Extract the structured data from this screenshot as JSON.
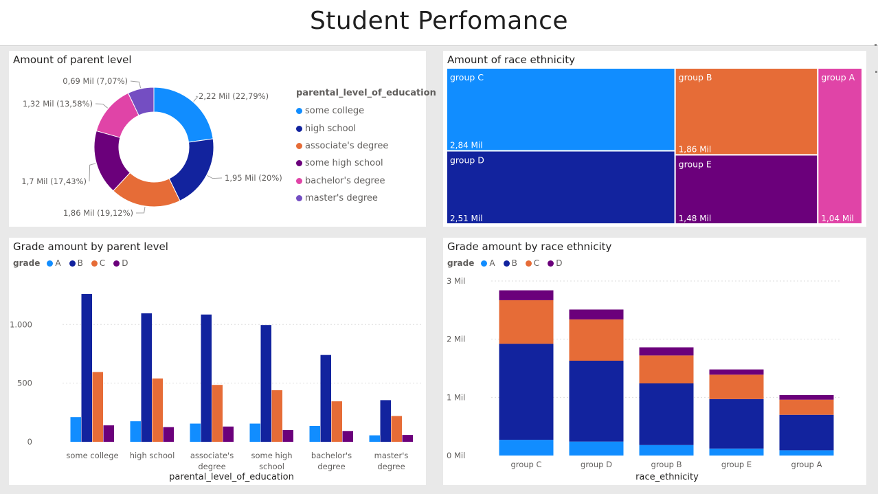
{
  "header": {
    "title": "Student Perfomance"
  },
  "colors": {
    "a": "#118dff",
    "b": "#12239e",
    "c": "#e66c37",
    "d": "#6b007b",
    "e": "#e044a7",
    "f": "#744ec2"
  },
  "chart_data": [
    {
      "type": "pie",
      "title": "Amount of parent level",
      "legend_title": "parental_level_of_education",
      "legend_position": "right",
      "slices": [
        {
          "name": "some college",
          "value": 2.22,
          "label": "2,22 Mil (22,79%)",
          "color": "#118dff"
        },
        {
          "name": "high school",
          "value": 1.95,
          "label": "1,95 Mil (20%)",
          "color": "#12239e"
        },
        {
          "name": "associate's degree",
          "value": 1.86,
          "label": "1,86 Mil (19,12%)",
          "color": "#e66c37"
        },
        {
          "name": "some high school",
          "value": 1.7,
          "label": "1,7 Mil (17,43%)",
          "color": "#6b007b"
        },
        {
          "name": "bachelor's degree",
          "value": 1.32,
          "label": "1,32 Mil (13,58%)",
          "color": "#e044a7"
        },
        {
          "name": "master's degree",
          "value": 0.69,
          "label": "0,69 Mil (7,07%)",
          "color": "#744ec2"
        }
      ]
    },
    {
      "type": "treemap",
      "title": "Amount of race ethnicity",
      "items": [
        {
          "name": "group C",
          "value": 2.84,
          "label": "2,84 Mil",
          "color": "#118dff"
        },
        {
          "name": "group D",
          "value": 2.51,
          "label": "2,51 Mil",
          "color": "#12239e"
        },
        {
          "name": "group B",
          "value": 1.86,
          "label": "1,86 Mil",
          "color": "#e66c37"
        },
        {
          "name": "group E",
          "value": 1.48,
          "label": "1,48 Mil",
          "color": "#6b007b"
        },
        {
          "name": "group A",
          "value": 1.04,
          "label": "1,04 Mil",
          "color": "#e044a7"
        }
      ]
    },
    {
      "type": "bar",
      "title": "Grade amount by parent level",
      "legend_title": "grade",
      "legend_position": "top-left",
      "xlabel": "parental_level_of_education",
      "ylabel": "",
      "ylim": [
        0,
        1400
      ],
      "yticks": [
        0,
        500,
        1000
      ],
      "ytick_labels": [
        "0",
        "500",
        "1.000"
      ],
      "grid": true,
      "categories": [
        [
          "some college"
        ],
        [
          "high school"
        ],
        [
          "associate's",
          "degree"
        ],
        [
          "some high",
          "school"
        ],
        [
          "bachelor's",
          "degree"
        ],
        [
          "master's",
          "degree"
        ]
      ],
      "series": [
        {
          "name": "A",
          "color": "#118dff",
          "values": [
            210,
            175,
            155,
            155,
            135,
            55
          ]
        },
        {
          "name": "B",
          "color": "#12239e",
          "values": [
            1260,
            1095,
            1085,
            995,
            740,
            355
          ]
        },
        {
          "name": "C",
          "color": "#e66c37",
          "values": [
            595,
            540,
            485,
            440,
            345,
            220
          ]
        },
        {
          "name": "D",
          "color": "#6b007b",
          "values": [
            140,
            125,
            130,
            100,
            92,
            58
          ]
        }
      ]
    },
    {
      "type": "bar",
      "stacked": true,
      "title": "Grade amount by race ethnicity",
      "legend_title": "grade",
      "legend_position": "top-left",
      "xlabel": "race_ethnicity",
      "ylabel": "",
      "ylim": [
        0,
        3
      ],
      "yticks": [
        0,
        1,
        2,
        3
      ],
      "ytick_labels": [
        "0 Mil",
        "1 Mil",
        "2 Mil",
        "3 Mil"
      ],
      "grid": true,
      "categories": [
        "group C",
        "group D",
        "group B",
        "group E",
        "group A"
      ],
      "series": [
        {
          "name": "A",
          "color": "#118dff",
          "values": [
            0.27,
            0.24,
            0.18,
            0.12,
            0.09
          ]
        },
        {
          "name": "B",
          "color": "#12239e",
          "values": [
            1.65,
            1.39,
            1.06,
            0.85,
            0.61
          ]
        },
        {
          "name": "C",
          "color": "#e66c37",
          "values": [
            0.75,
            0.71,
            0.48,
            0.42,
            0.26
          ]
        },
        {
          "name": "D",
          "color": "#6b007b",
          "values": [
            0.17,
            0.17,
            0.14,
            0.09,
            0.08
          ]
        }
      ]
    }
  ]
}
